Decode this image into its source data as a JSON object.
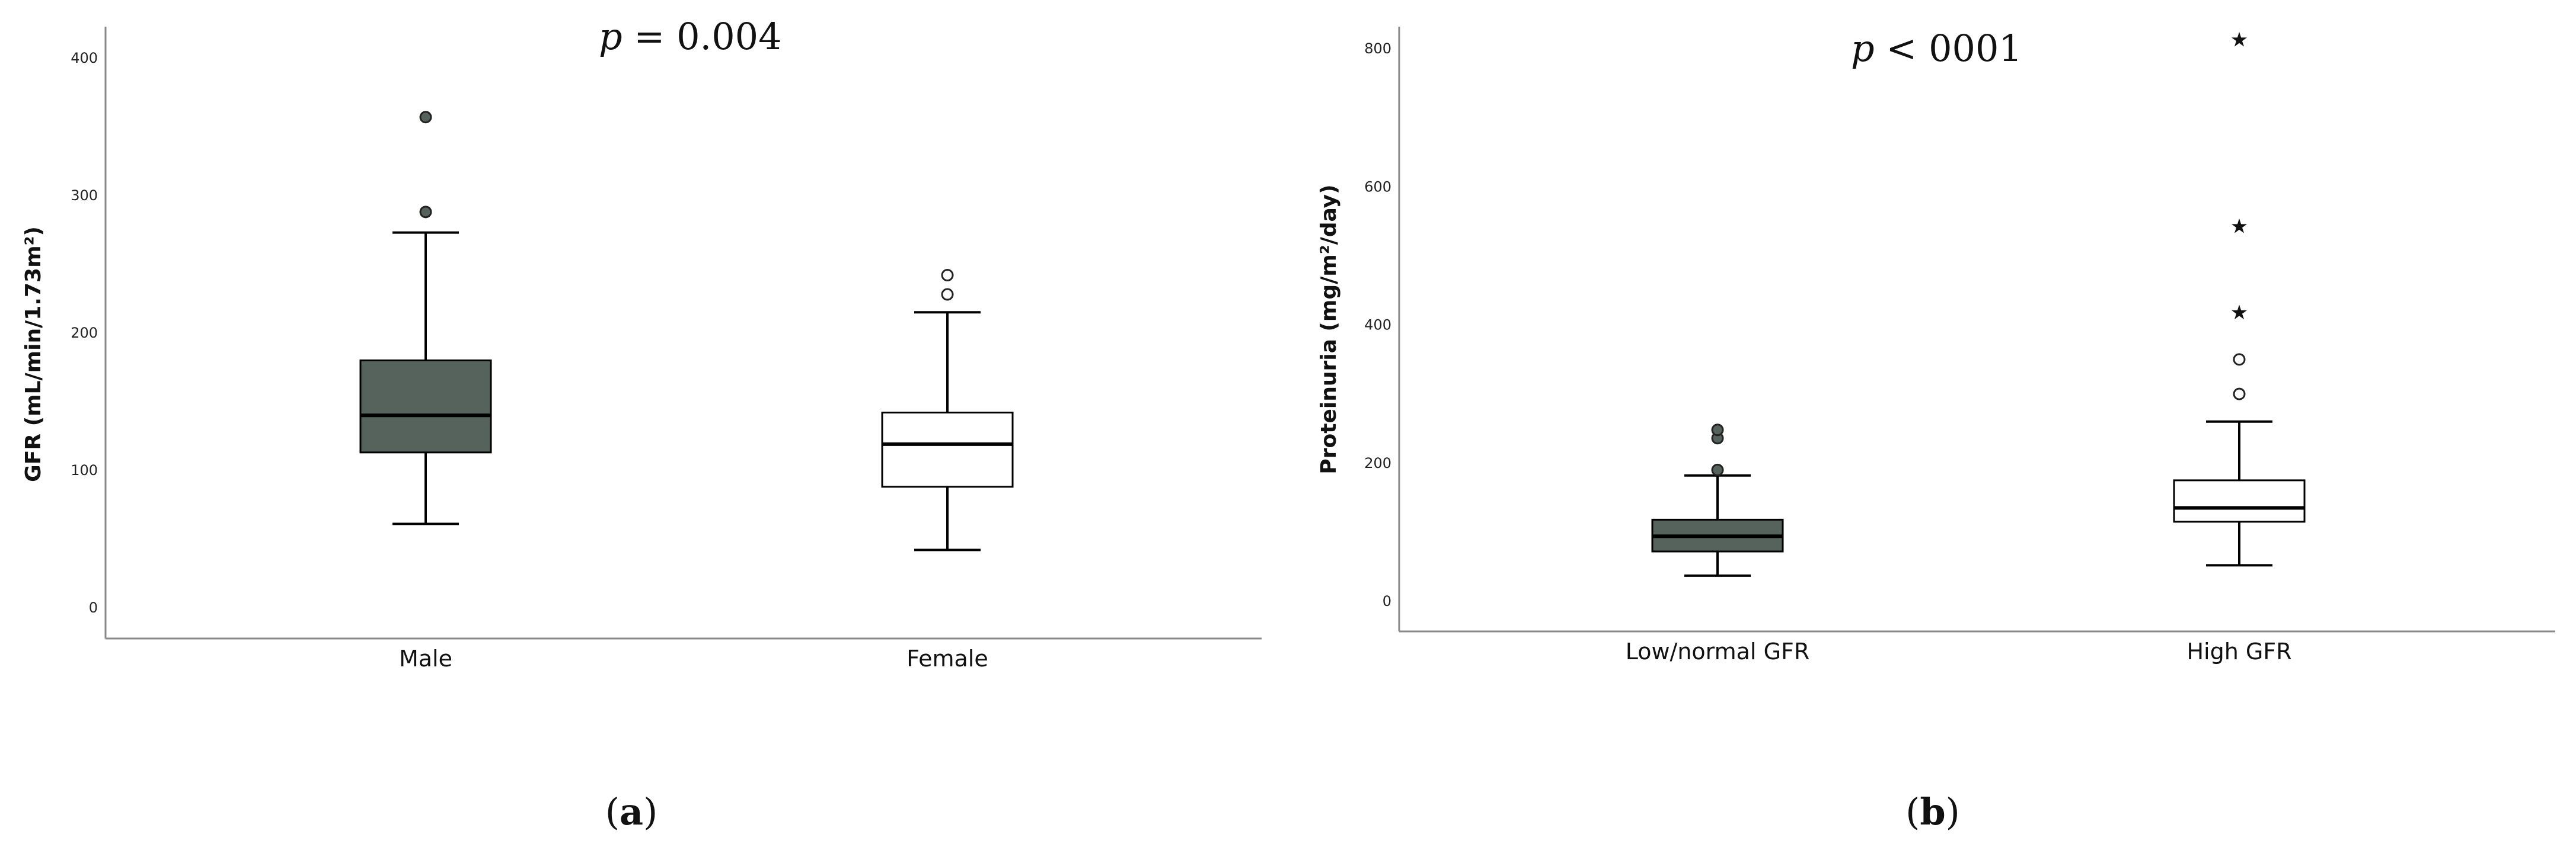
{
  "chart_data": [
    {
      "type": "box",
      "panel": "(a)",
      "panel_label_open": "(",
      "panel_label_letter": "a",
      "panel_label_close": ")",
      "annotation_prefix": "p",
      "annotation_suffix": " = 0.004",
      "xlabel": "",
      "ylabel": "GFR (mL/min/1.73m²)",
      "ylim": [
        -20,
        420
      ],
      "yticks": [
        0,
        100,
        200,
        300,
        400
      ],
      "categories": [
        "Male",
        "Female"
      ],
      "boxes": [
        {
          "category": "Male",
          "whisker_low": 61,
          "q1": 113,
          "median": 140,
          "q3": 180,
          "whisker_high": 273,
          "outliers": [
            288,
            357
          ],
          "extremes": [],
          "fill": "#56635d",
          "outlier_filled": true
        },
        {
          "category": "Female",
          "whisker_low": 42,
          "q1": 88,
          "median": 119,
          "q3": 142,
          "whisker_high": 215,
          "outliers": [
            228,
            242
          ],
          "extremes": [],
          "fill": "#ffffff",
          "outlier_filled": false
        }
      ]
    },
    {
      "type": "box",
      "panel": "(b)",
      "panel_label_open": "(",
      "panel_label_letter": "b",
      "panel_label_close": ")",
      "annotation_prefix": "p",
      "annotation_suffix": " < 0001",
      "xlabel": "",
      "ylabel": "Proteinuria (mg/m²/day)",
      "ylim": [
        -40,
        840
      ],
      "yticks": [
        0,
        200,
        400,
        600,
        800
      ],
      "categories": [
        "Low/normal GFR",
        "High GFR"
      ],
      "boxes": [
        {
          "category": "Low/normal GFR",
          "whisker_low": 37,
          "q1": 72,
          "median": 94,
          "q3": 118,
          "whisker_high": 182,
          "outliers": [
            190,
            236,
            248
          ],
          "extremes": [],
          "fill": "#56635d",
          "outlier_filled": true
        },
        {
          "category": "High GFR",
          "whisker_low": 52,
          "q1": 115,
          "median": 135,
          "q3": 175,
          "whisker_high": 260,
          "outliers": [
            300,
            350
          ],
          "extremes": [
            420,
            545,
            815
          ],
          "fill": "#ffffff",
          "outlier_filled": false
        }
      ]
    }
  ],
  "colors": {
    "dark_box": "#56635d",
    "axis": "#888888",
    "line": "#000000"
  }
}
